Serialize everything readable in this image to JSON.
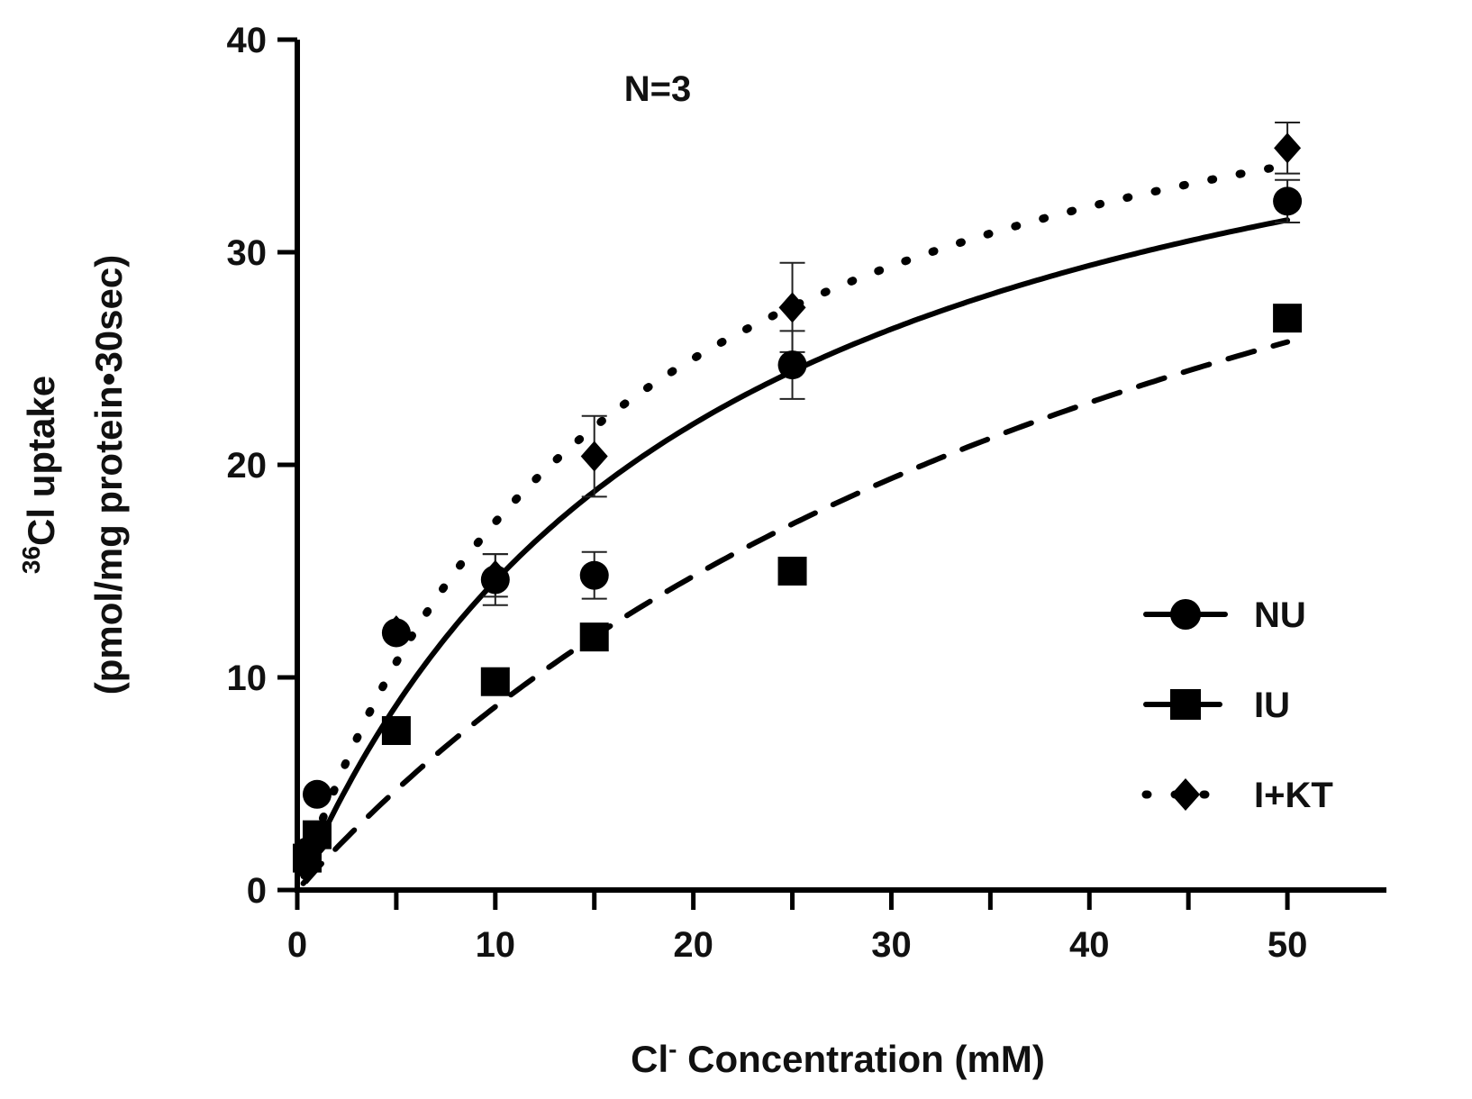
{
  "chart_data": {
    "type": "scatter",
    "title": "",
    "annotation": "N=3",
    "xlabel_main": "Cl",
    "xlabel_sup": "-",
    "xlabel_rest": " Concentration (mM)",
    "ylabel_line1_sup": "36",
    "ylabel_line1_rest": "Cl uptake",
    "ylabel_line2": "(pmol/mg protein•30sec)",
    "xlim": [
      0,
      55
    ],
    "ylim": [
      0,
      40
    ],
    "xticks": [
      0,
      10,
      20,
      30,
      40,
      50
    ],
    "yticks": [
      0,
      10,
      20,
      30,
      40
    ],
    "series": [
      {
        "name": "NU",
        "marker": "circle",
        "line": "solid",
        "x": [
          0.5,
          1,
          5,
          10,
          15,
          25,
          50
        ],
        "y": [
          1.8,
          4.5,
          12.1,
          14.6,
          14.8,
          24.7,
          32.4
        ],
        "err": [
          0,
          0,
          0,
          1.2,
          1.1,
          1.6,
          1.0
        ],
        "fit": {
          "vmax": 44.5,
          "km": 20.6
        }
      },
      {
        "name": "IU",
        "marker": "square",
        "line": "dashed",
        "x": [
          0.5,
          1,
          5,
          10,
          15,
          25,
          50
        ],
        "y": [
          1.5,
          2.6,
          7.5,
          9.8,
          11.9,
          15.0,
          26.9
        ],
        "err": [
          0,
          0,
          0,
          0,
          0,
          0,
          0
        ],
        "fit": {
          "vmax": 51.3,
          "km": 49.5
        }
      },
      {
        "name": "I+KT",
        "marker": "diamond",
        "line": "dotted",
        "x": [
          0.5,
          1,
          5,
          10,
          15,
          25,
          50
        ],
        "y": [
          1.0,
          2.2,
          12.2,
          14.8,
          20.4,
          27.4,
          34.9
        ],
        "err": [
          0,
          0,
          0,
          1.0,
          1.9,
          2.1,
          1.2
        ],
        "fit": {
          "vmax": 45.0,
          "km": 16.0
        }
      }
    ],
    "legend": [
      "NU",
      "IU",
      "I+KT"
    ],
    "legend_position": "lower-right",
    "grid": false
  }
}
